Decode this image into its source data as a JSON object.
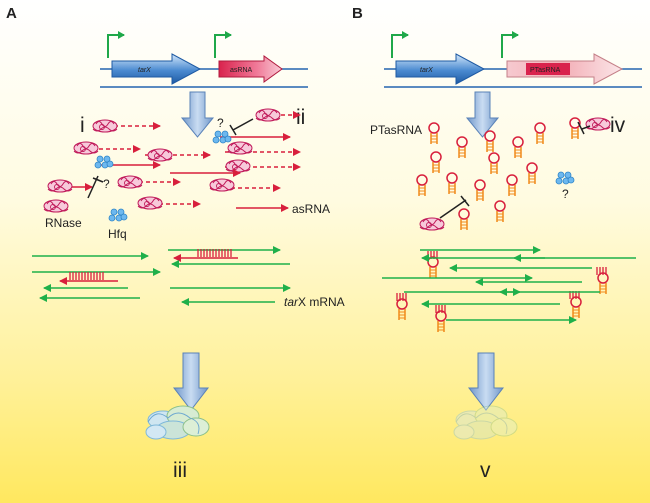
{
  "panel_a": {
    "letter": "A",
    "gene1": "tarX",
    "gene2": "asRNA",
    "roman_i": "i",
    "roman_ii": "ii",
    "roman_iii": "iii",
    "q1": "?",
    "q2": "?",
    "rnase": "RNase",
    "hfq": "Hfq",
    "asrna": "asRNA",
    "mrna_italic": "tar",
    "mrna_rest": "X mRNA"
  },
  "panel_b": {
    "letter": "B",
    "gene1": "tarX",
    "gene2": "PTasRNA",
    "ptasrna": "PTasRNA",
    "roman_iv": "iv",
    "roman_v": "v",
    "q": "?"
  },
  "colors": {
    "promoter": "#1fa84a",
    "gene_blue": "#3a7fc4",
    "gene_red": "#e0305a",
    "rna_red": "#d81f3c",
    "mrna_green": "#1fb04a",
    "hairpin": "#f08a1a",
    "hfq": "#3aa0e8",
    "down_arrow": "#8fb3dc"
  }
}
